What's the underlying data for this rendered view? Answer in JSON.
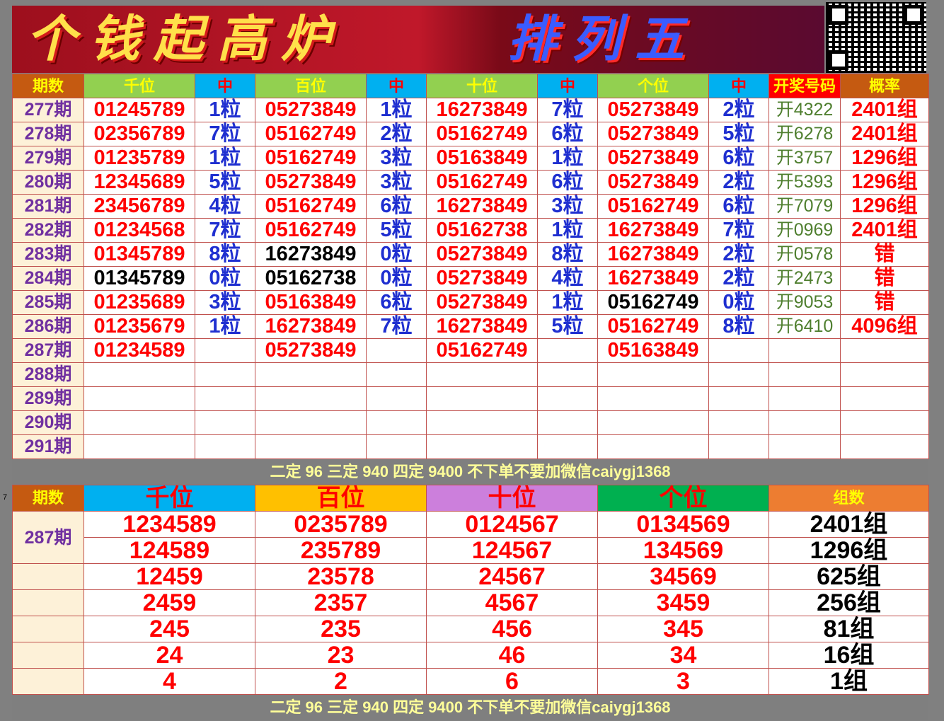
{
  "banner": {
    "left_text": "个钱起高炉",
    "right_text": "排列五"
  },
  "top_headers": [
    "期数",
    "千位",
    "中",
    "百位",
    "中",
    "十位",
    "中",
    "个位",
    "中",
    "开奖号码",
    "概率"
  ],
  "top_rows": [
    {
      "period": "277期",
      "q": "01245789",
      "qh": "1粒",
      "b": "05273849",
      "bh": "1粒",
      "s": "16273849",
      "sh": "7粒",
      "g": "05273849",
      "gh": "2粒",
      "draw": "开4322",
      "prob": "2401组"
    },
    {
      "period": "278期",
      "q": "02356789",
      "qh": "7粒",
      "b": "05162749",
      "bh": "2粒",
      "s": "05162749",
      "sh": "6粒",
      "g": "05273849",
      "gh": "5粒",
      "draw": "开6278",
      "prob": "2401组"
    },
    {
      "period": "279期",
      "q": "01235789",
      "qh": "1粒",
      "b": "05162749",
      "bh": "3粒",
      "s": "05163849",
      "sh": "1粒",
      "g": "05273849",
      "gh": "6粒",
      "draw": "开3757",
      "prob": "1296组"
    },
    {
      "period": "280期",
      "q": "12345689",
      "qh": "5粒",
      "b": "05273849",
      "bh": "3粒",
      "s": "05162749",
      "sh": "6粒",
      "g": "05273849",
      "gh": "2粒",
      "draw": "开5393",
      "prob": "1296组"
    },
    {
      "period": "281期",
      "q": "23456789",
      "qh": "4粒",
      "b": "05162749",
      "bh": "6粒",
      "s": "16273849",
      "sh": "3粒",
      "g": "05162749",
      "gh": "6粒",
      "draw": "开7079",
      "prob": "1296组"
    },
    {
      "period": "282期",
      "q": "01234568",
      "qh": "7粒",
      "b": "05162749",
      "bh": "5粒",
      "s": "05162738",
      "sh": "1粒",
      "g": "16273849",
      "gh": "7粒",
      "draw": "开0969",
      "prob": "2401组"
    },
    {
      "period": "283期",
      "q": "01345789",
      "qh": "8粒",
      "b": "16273849",
      "bh": "0粒",
      "s": "05273849",
      "sh": "8粒",
      "g": "16273849",
      "gh": "2粒",
      "draw": "开0578",
      "prob": "错"
    },
    {
      "period": "284期",
      "q": "01345789",
      "qh": "0粒",
      "b": "05162738",
      "bh": "0粒",
      "s": "05273849",
      "sh": "4粒",
      "g": "16273849",
      "gh": "2粒",
      "draw": "开2473",
      "prob": "错"
    },
    {
      "period": "285期",
      "q": "01235689",
      "qh": "3粒",
      "b": "05163849",
      "bh": "6粒",
      "s": "05273849",
      "sh": "1粒",
      "g": "05162749",
      "gh": "0粒",
      "draw": "开9053",
      "prob": "错"
    },
    {
      "period": "286期",
      "q": "01235679",
      "qh": "1粒",
      "b": "16273849",
      "bh": "7粒",
      "s": "16273849",
      "sh": "5粒",
      "g": "05162749",
      "gh": "8粒",
      "draw": "开6410",
      "prob": "4096组"
    },
    {
      "period": "287期",
      "q": "01234589",
      "qh": "",
      "b": "05273849",
      "bh": "",
      "s": "05162749",
      "sh": "",
      "g": "05163849",
      "gh": "",
      "draw": "",
      "prob": ""
    },
    {
      "period": "288期",
      "q": "",
      "qh": "",
      "b": "",
      "bh": "",
      "s": "",
      "sh": "",
      "g": "",
      "gh": "",
      "draw": "",
      "prob": ""
    },
    {
      "period": "289期",
      "q": "",
      "qh": "",
      "b": "",
      "bh": "",
      "s": "",
      "sh": "",
      "g": "",
      "gh": "",
      "draw": "",
      "prob": ""
    },
    {
      "period": "290期",
      "q": "",
      "qh": "",
      "b": "",
      "bh": "",
      "s": "",
      "sh": "",
      "g": "",
      "gh": "",
      "draw": "",
      "prob": ""
    },
    {
      "period": "291期",
      "q": "",
      "qh": "",
      "b": "",
      "bh": "",
      "s": "",
      "sh": "",
      "g": "",
      "gh": "",
      "draw": "",
      "prob": ""
    }
  ],
  "band_text": "二定 96 三定 940 四定 9400 不下单不要加微信caiygj1368",
  "row_number": "7",
  "bottom": {
    "headers": [
      "期数",
      "千位",
      "百位",
      "十位",
      "个位",
      "组数"
    ],
    "period": "287期",
    "rows": [
      [
        "1234589",
        "0235789",
        "0124567",
        "0134569",
        "2401组"
      ],
      [
        "124589",
        "235789",
        "124567",
        "134569",
        "1296组"
      ],
      [
        "12459",
        "23578",
        "24567",
        "34569",
        "625组"
      ],
      [
        "2459",
        "2357",
        "4567",
        "3459",
        "256组"
      ],
      [
        "245",
        "235",
        "456",
        "345",
        "81组"
      ],
      [
        "24",
        "23",
        "46",
        "34",
        "16组"
      ],
      [
        "4",
        "2",
        "6",
        "3",
        "1组"
      ]
    ]
  },
  "colors": {
    "hit_red": "#ff0000",
    "count_blue": "#1f2fd0",
    "period_purple": "#7030a0",
    "header_green": "#92d050",
    "header_blue": "#00b0f0",
    "header_orange": "#c55a11"
  }
}
